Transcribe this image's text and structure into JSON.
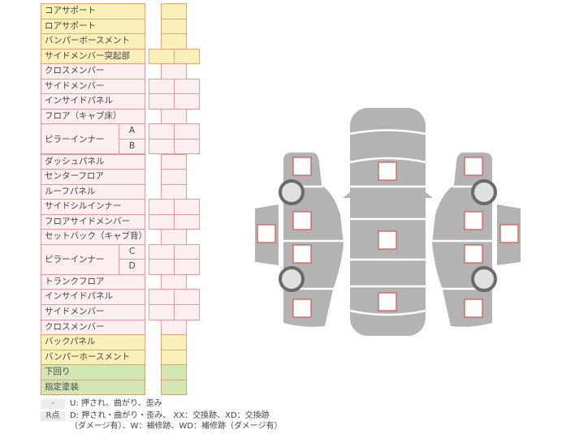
{
  "colors": {
    "yellow": "#fbf0b9",
    "pink": "#fdeef0",
    "green": "#d4e6b2",
    "border": "#e29a8c",
    "car_body": "#b3b3b3",
    "marker": "#d9534f"
  },
  "rows": [
    {
      "label": "コアサポート",
      "color": "yellow",
      "cells": 1
    },
    {
      "label": "ロアサポート",
      "color": "yellow",
      "cells": 1
    },
    {
      "label": "バンパーボースメント",
      "color": "yellow",
      "cells": 1
    },
    {
      "label": "サイドメンバー突起部",
      "color": "yellow",
      "cells": 2
    },
    {
      "label": "クロスメンバー",
      "color": "pink",
      "cells": 1
    },
    {
      "label": "サイドメンバー",
      "color": "pink",
      "cells": 2
    },
    {
      "label": "インサイドパネル",
      "color": "pink",
      "cells": 2
    },
    {
      "label": "フロア（キャブ床）",
      "color": "pink",
      "cells": 1
    },
    {
      "label": "ピラーインナー",
      "color": "pink",
      "cells": 2,
      "subs": [
        "A",
        "B"
      ]
    },
    {
      "label": "ダッシュパネル",
      "color": "pink",
      "cells": 1
    },
    {
      "label": "センターフロア",
      "color": "pink",
      "cells": 1
    },
    {
      "label": "ルーフパネル",
      "color": "pink",
      "cells": 1
    },
    {
      "label": "サイドシルインナー",
      "color": "pink",
      "cells": 2
    },
    {
      "label": "フロアサイドメンバー",
      "color": "pink",
      "cells": 2
    },
    {
      "label": "セットバック（キャブ背）",
      "color": "pink",
      "cells": 1
    },
    {
      "label": "ピラーインナー",
      "color": "pink",
      "cells": 2,
      "subs": [
        "C",
        "D"
      ]
    },
    {
      "label": "トランクフロア",
      "color": "pink",
      "cells": 1
    },
    {
      "label": "インサイドパネル",
      "color": "pink",
      "cells": 2
    },
    {
      "label": "サイドメンバー",
      "color": "pink",
      "cells": 2
    },
    {
      "label": "クロスメンバー",
      "color": "pink",
      "cells": 1
    },
    {
      "label": "バックパネル",
      "color": "yellow",
      "cells": 1
    },
    {
      "label": "バンパーホースメント",
      "color": "yellow",
      "cells": 1
    },
    {
      "label": "下回り",
      "color": "green",
      "cells": 1
    },
    {
      "label": "指定塗装",
      "color": "green",
      "cells": 1
    }
  ],
  "legend": {
    "key1": "-",
    "text1": "U: 押され、曲がり、歪み",
    "key2": "R点",
    "text2a": "D: 押され・曲がり・歪み、 XX：交換跡、XD：交換跡",
    "text2b": "（ダメージ有）、W：補修跡、WD：補修跡（ダメージ有）"
  }
}
